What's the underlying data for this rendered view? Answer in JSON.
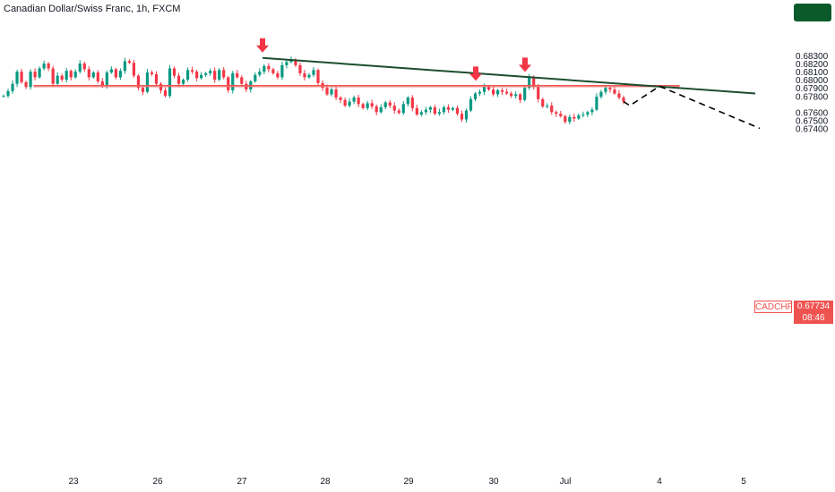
{
  "header": {
    "title": "Canadian Dollar/Swiss Franc, 1h, FXCM"
  },
  "price_tag": {
    "symbol": "CADCHF",
    "value": "0.67734",
    "countdown": "08:46"
  },
  "colors": {
    "up": "#089981",
    "down": "#f23645",
    "trendline": "#1b4d2e",
    "zone_fill": "#f7c9cd",
    "zone_border": "#ef5350",
    "arrow": "#f23645",
    "badge": "#0a5a2a"
  },
  "chart_data": {
    "type": "candlestick",
    "title": "Canadian Dollar/Swiss Franc, 1h, FXCM",
    "ylim": [
      0.6737,
      0.6834
    ],
    "y_ticks": [
      "0.68300",
      "0.68200",
      "0.68100",
      "0.68000",
      "0.67900",
      "0.67800",
      "0.67600",
      "0.67500",
      "0.67400"
    ],
    "x_ticks": [
      "23",
      "26",
      "27",
      "28",
      "29",
      "30",
      "Jul",
      "4",
      "5"
    ],
    "last_price": 0.67734,
    "trendline": {
      "from": [
        "27",
        0.6827
      ],
      "to": [
        "4",
        0.6783
      ]
    },
    "resistance_zone": [
      0.67915,
      0.6793
    ],
    "arrows_at_highs": [
      0.6827,
      0.6792,
      0.6803
    ],
    "projection": [
      0.6773,
      0.6768,
      0.6792,
      0.674
    ],
    "candles_close": [
      0.678,
      0.6786,
      0.6795,
      0.681,
      0.6797,
      0.6791,
      0.681,
      0.6803,
      0.6814,
      0.682,
      0.6814,
      0.6795,
      0.6805,
      0.68,
      0.6811,
      0.6803,
      0.681,
      0.682,
      0.6813,
      0.6803,
      0.6809,
      0.6798,
      0.6793,
      0.6809,
      0.6813,
      0.6803,
      0.6811,
      0.6823,
      0.6821,
      0.6805,
      0.679,
      0.6785,
      0.6809,
      0.6807,
      0.6795,
      0.6787,
      0.678,
      0.6814,
      0.6805,
      0.6795,
      0.68,
      0.6812,
      0.681,
      0.6802,
      0.6806,
      0.6808,
      0.6811,
      0.68,
      0.6812,
      0.6803,
      0.6787,
      0.6808,
      0.6803,
      0.6795,
      0.6788,
      0.6798,
      0.6806,
      0.681,
      0.6817,
      0.6813,
      0.6808,
      0.6803,
      0.6818,
      0.6822,
      0.6825,
      0.6818,
      0.6808,
      0.6803,
      0.6806,
      0.6812,
      0.6796,
      0.679,
      0.6782,
      0.6788,
      0.6778,
      0.6775,
      0.6768,
      0.6773,
      0.6778,
      0.677,
      0.6765,
      0.6771,
      0.6767,
      0.676,
      0.6766,
      0.6772,
      0.6768,
      0.6762,
      0.6759,
      0.677,
      0.6778,
      0.6765,
      0.6757,
      0.676,
      0.6763,
      0.6766,
      0.6758,
      0.676,
      0.6766,
      0.6763,
      0.6765,
      0.6758,
      0.6751,
      0.6762,
      0.6776,
      0.6783,
      0.6785,
      0.6791,
      0.6788,
      0.6782,
      0.6787,
      0.6785,
      0.6783,
      0.678,
      0.6782,
      0.6775,
      0.679,
      0.6803,
      0.6791,
      0.6776,
      0.6767,
      0.6768,
      0.676,
      0.6758,
      0.6755,
      0.6748,
      0.6754,
      0.6752,
      0.6756,
      0.6757,
      0.676,
      0.6763,
      0.6779,
      0.6785,
      0.679,
      0.6788,
      0.6783,
      0.6778,
      0.6773
    ]
  }
}
